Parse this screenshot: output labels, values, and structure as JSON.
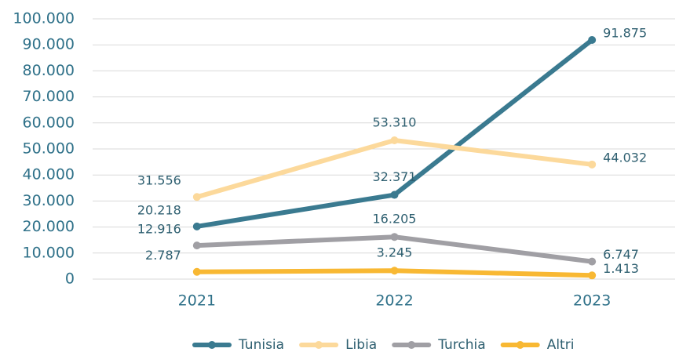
{
  "chart_data": {
    "type": "line",
    "categories": [
      "2021",
      "2022",
      "2023"
    ],
    "series": [
      {
        "name": "Tunisia",
        "color": "#3a7a90",
        "values": [
          20218,
          32371,
          91875
        ],
        "value_labels": [
          "20.218",
          "32.371",
          "91.875"
        ]
      },
      {
        "name": "Libia",
        "color": "#fcd99b",
        "values": [
          31556,
          53310,
          44032
        ],
        "value_labels": [
          "31.556",
          "53.310",
          "44.032"
        ]
      },
      {
        "name": "Turchia",
        "color": "#a09fa4",
        "values": [
          12916,
          16205,
          6747
        ],
        "value_labels": [
          "12.916",
          "16.205",
          "6.747"
        ]
      },
      {
        "name": "Altri",
        "color": "#f8b833",
        "values": [
          2787,
          3245,
          1413
        ],
        "value_labels": [
          "2.787",
          "3.245",
          "1.413"
        ]
      }
    ],
    "ylim": [
      0,
      100000
    ],
    "yticks": [
      0,
      {
        "value": 10000,
        "label": "10.000"
      },
      {
        "value": 20000,
        "label": "20.000"
      },
      {
        "value": 30000,
        "label": "30.000"
      },
      {
        "value": 40000,
        "label": "40.000"
      },
      {
        "value": 50000,
        "label": "50.000"
      },
      {
        "value": 60000,
        "label": "60.000"
      },
      {
        "value": 70000,
        "label": "70.000"
      },
      {
        "value": 80000,
        "label": "80.000"
      },
      {
        "value": 90000,
        "label": "90.000"
      },
      {
        "value": 100000,
        "label": "100.000"
      }
    ],
    "grid": true,
    "legend": "bottom"
  }
}
